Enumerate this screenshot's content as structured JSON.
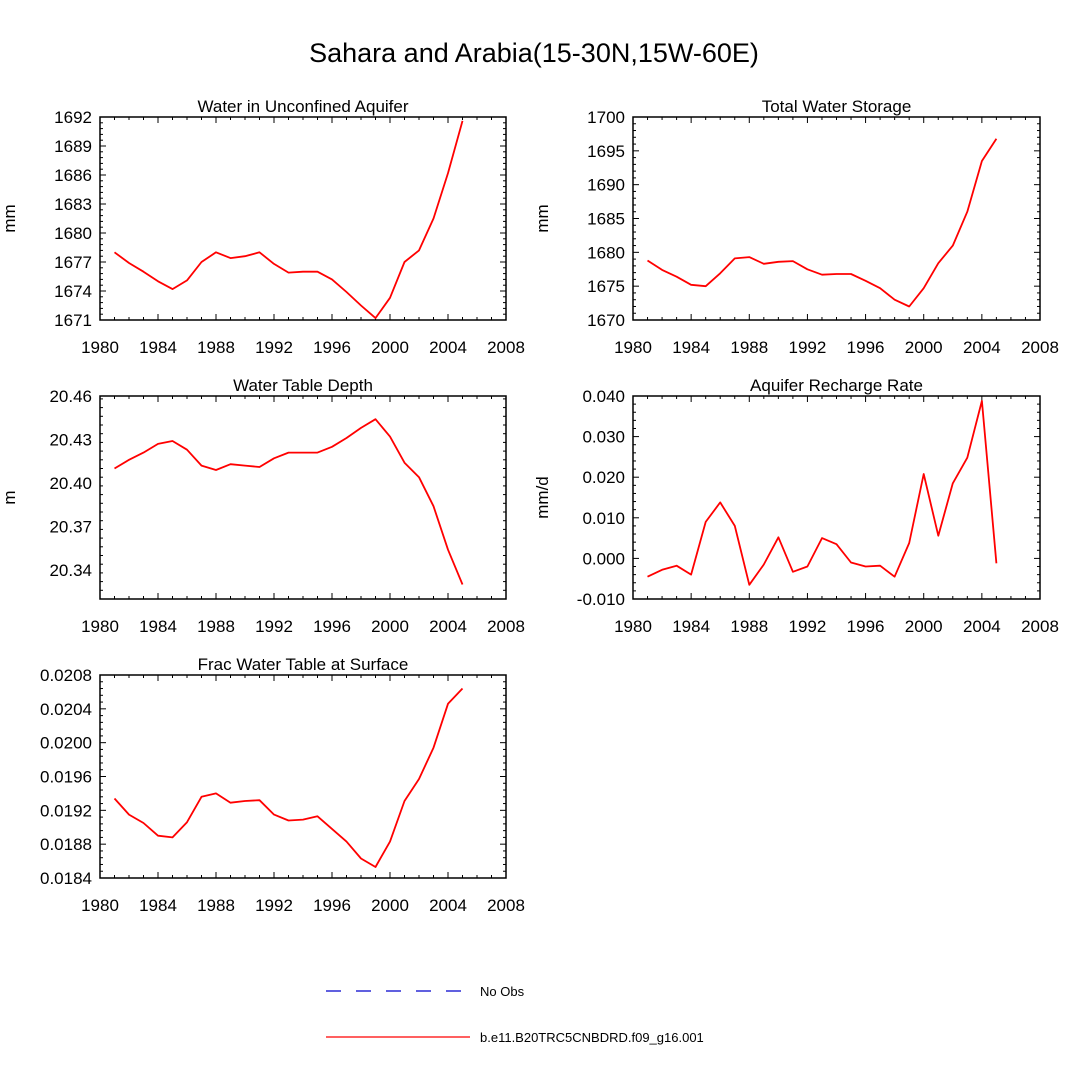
{
  "figure_title": "Sahara and Arabia(15-30N,15W-60E)",
  "legend": {
    "obs_label": "No Obs",
    "model_label": "b.e11.B20TRC5CNBDRD.f09_g16.001",
    "obs_color": "#0000cc",
    "model_color": "#ff0000"
  },
  "chart_data": [
    {
      "type": "line",
      "title": "Water in Unconfined Aquifer",
      "xlabel": "",
      "ylabel": "mm",
      "xlim": [
        1980,
        2008
      ],
      "ylim": [
        1671,
        1692
      ],
      "xticks": [
        1980,
        1984,
        1988,
        1992,
        1996,
        2000,
        2004,
        2008
      ],
      "yticks": [
        "1671",
        "1674",
        "1677",
        "1680",
        "1683",
        "1686",
        "1689",
        "1692"
      ],
      "series": [
        {
          "name": "b.e11.B20TRC5CNBDRD.f09_g16.001",
          "x": [
            1981,
            1982,
            1983,
            1984,
            1985,
            1986,
            1987,
            1988,
            1989,
            1990,
            1991,
            1992,
            1993,
            1994,
            1995,
            1996,
            1997,
            1998,
            1999,
            2000,
            2001,
            2002,
            2003,
            2004,
            2005
          ],
          "values": [
            1678.0,
            1676.9,
            1676.0,
            1675.0,
            1674.2,
            1675.1,
            1677.0,
            1678.0,
            1677.4,
            1677.6,
            1678.0,
            1676.8,
            1675.9,
            1676.0,
            1676.0,
            1675.2,
            1673.9,
            1672.5,
            1671.2,
            1673.3,
            1677.0,
            1678.2,
            1681.5,
            1686.2,
            1691.6
          ]
        }
      ]
    },
    {
      "type": "line",
      "title": "Total Water Storage",
      "xlabel": "",
      "ylabel": "mm",
      "xlim": [
        1980,
        2008
      ],
      "ylim": [
        1670,
        1700
      ],
      "xticks": [
        1980,
        1984,
        1988,
        1992,
        1996,
        2000,
        2004,
        2008
      ],
      "yticks": [
        "1670",
        "1675",
        "1680",
        "1685",
        "1690",
        "1695",
        "1700"
      ],
      "series": [
        {
          "name": "b.e11.B20TRC5CNBDRD.f09_g16.001",
          "x": [
            1981,
            1982,
            1983,
            1984,
            1985,
            1986,
            1987,
            1988,
            1989,
            1990,
            1991,
            1992,
            1993,
            1994,
            1995,
            1996,
            1997,
            1998,
            1999,
            2000,
            2001,
            2002,
            2003,
            2004,
            2005
          ],
          "values": [
            1678.8,
            1677.4,
            1676.4,
            1675.2,
            1675.0,
            1676.9,
            1679.1,
            1679.3,
            1678.3,
            1678.6,
            1678.7,
            1677.5,
            1676.7,
            1676.8,
            1676.8,
            1675.8,
            1674.7,
            1673.0,
            1672.0,
            1674.7,
            1678.4,
            1681.0,
            1686.0,
            1693.5,
            1696.8
          ]
        }
      ]
    },
    {
      "type": "line",
      "title": "Water Table Depth",
      "xlabel": "",
      "ylabel": "m",
      "xlim": [
        1980,
        2008
      ],
      "ylim": [
        20.32,
        20.46
      ],
      "xticks": [
        1980,
        1984,
        1988,
        1992,
        1996,
        2000,
        2004,
        2008
      ],
      "yticks": [
        "20.34",
        "20.37",
        "20.40",
        "20.43",
        "20.46"
      ],
      "series": [
        {
          "name": "b.e11.B20TRC5CNBDRD.f09_g16.001",
          "x": [
            1981,
            1982,
            1983,
            1984,
            1985,
            1986,
            1987,
            1988,
            1989,
            1990,
            1991,
            1992,
            1993,
            1994,
            1995,
            1996,
            1997,
            1998,
            1999,
            2000,
            2001,
            2002,
            2003,
            2004,
            2005
          ],
          "values": [
            20.41,
            20.416,
            20.421,
            20.427,
            20.429,
            20.423,
            20.412,
            20.409,
            20.413,
            20.412,
            20.411,
            20.417,
            20.421,
            20.421,
            20.421,
            20.425,
            20.431,
            20.438,
            20.444,
            20.432,
            20.414,
            20.404,
            20.384,
            20.354,
            20.33
          ]
        }
      ]
    },
    {
      "type": "line",
      "title": "Aquifer Recharge Rate",
      "xlabel": "",
      "ylabel": "mm/d",
      "xlim": [
        1980,
        2008
      ],
      "ylim": [
        -0.01,
        0.04
      ],
      "xticks": [
        1980,
        1984,
        1988,
        1992,
        1996,
        2000,
        2004,
        2008
      ],
      "yticks": [
        "-0.010",
        "0.000",
        "0.010",
        "0.020",
        "0.030",
        "0.040"
      ],
      "series": [
        {
          "name": "b.e11.B20TRC5CNBDRD.f09_g16.001",
          "x": [
            1981,
            1982,
            1983,
            1984,
            1985,
            1986,
            1987,
            1988,
            1989,
            1990,
            1991,
            1992,
            1993,
            1994,
            1995,
            1996,
            1997,
            1998,
            1999,
            2000,
            2001,
            2002,
            2003,
            2004,
            2005
          ],
          "values": [
            -0.0045,
            -0.0028,
            -0.0018,
            -0.004,
            0.009,
            0.0138,
            0.008,
            -0.0065,
            -0.0015,
            0.0052,
            -0.0033,
            -0.002,
            0.005,
            0.0035,
            -0.001,
            -0.002,
            -0.0018,
            -0.0045,
            0.0038,
            0.0208,
            0.0056,
            0.0185,
            0.0248,
            0.0388,
            -0.0012
          ]
        }
      ]
    },
    {
      "type": "line",
      "title": "Frac Water Table at Surface",
      "xlabel": "",
      "ylabel": "",
      "xlim": [
        1980,
        2008
      ],
      "ylim": [
        0.0184,
        0.0208
      ],
      "xticks": [
        1980,
        1984,
        1988,
        1992,
        1996,
        2000,
        2004,
        2008
      ],
      "yticks": [
        "0.0184",
        "0.0188",
        "0.0192",
        "0.0196",
        "0.0200",
        "0.0204",
        "0.0208"
      ],
      "series": [
        {
          "name": "b.e11.B20TRC5CNBDRD.f09_g16.001",
          "x": [
            1981,
            1982,
            1983,
            1984,
            1985,
            1986,
            1987,
            1988,
            1989,
            1990,
            1991,
            1992,
            1993,
            1994,
            1995,
            1996,
            1997,
            1998,
            1999,
            2000,
            2001,
            2002,
            2003,
            2004,
            2005
          ],
          "values": [
            0.01934,
            0.01915,
            0.01905,
            0.0189,
            0.01888,
            0.01906,
            0.01936,
            0.0194,
            0.01929,
            0.01931,
            0.01932,
            0.01915,
            0.01908,
            0.01909,
            0.01913,
            0.01898,
            0.01883,
            0.01863,
            0.01853,
            0.01883,
            0.01931,
            0.01957,
            0.01994,
            0.02046,
            0.02064
          ]
        }
      ]
    }
  ]
}
